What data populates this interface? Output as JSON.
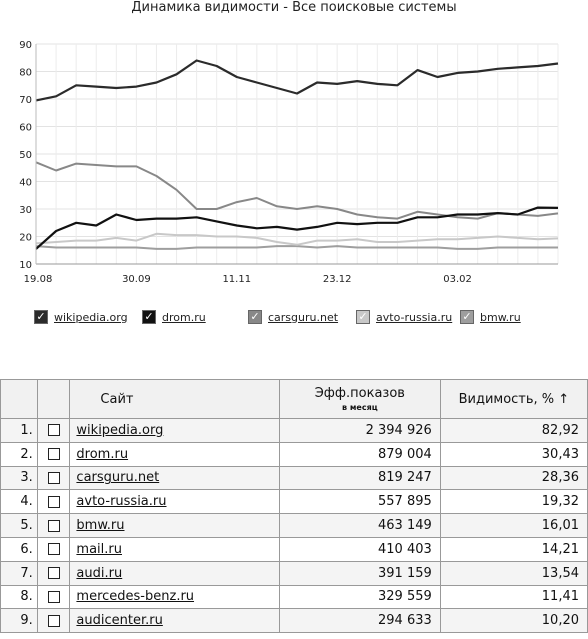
{
  "chart_data": {
    "type": "line",
    "title": "Динамика видимости - Все поисковые системы",
    "ylim": [
      10,
      90
    ],
    "yticks": [
      "10",
      "20",
      "30",
      "40",
      "50",
      "60",
      "70",
      "80",
      "90"
    ],
    "xtick_labels": [
      "19.08",
      "30.09",
      "11.11",
      "23.12",
      "03.02"
    ],
    "grid": true,
    "legend_position": "bottom",
    "series": [
      {
        "name": "wikipedia.org",
        "color": "#2b2b2b",
        "values": [
          69.5,
          71,
          75,
          74.5,
          74,
          74.5,
          76,
          79,
          84,
          82,
          78,
          76,
          74,
          72,
          76,
          75.5,
          76.5,
          75.5,
          75,
          80.5,
          78,
          79.5,
          80,
          81,
          81.5,
          82,
          82.9
        ]
      },
      {
        "name": "drom.ru",
        "color": "#111111",
        "values": [
          15.5,
          22,
          25,
          24,
          28,
          26,
          26.5,
          26.5,
          27,
          25.5,
          24,
          23,
          23.5,
          22.5,
          23.5,
          25,
          24.5,
          25,
          25,
          27,
          27,
          28,
          28,
          28.5,
          28,
          30.5,
          30.4
        ]
      },
      {
        "name": "carsguru.net",
        "color": "#888888",
        "values": [
          47,
          44,
          46.5,
          46,
          45.5,
          45.5,
          42,
          37,
          30,
          30,
          32.5,
          34,
          31,
          30,
          31,
          30,
          28,
          27,
          26.5,
          29,
          28,
          27,
          26.5,
          28.5,
          28,
          27.5,
          28.4
        ]
      },
      {
        "name": "avto-russia.ru",
        "color": "#c8c8c8",
        "values": [
          17.5,
          18,
          18.5,
          18.5,
          19.5,
          18.5,
          21,
          20.5,
          20.5,
          20,
          20,
          19.5,
          18,
          17,
          18.5,
          18.5,
          19,
          18,
          18,
          18.5,
          19,
          19,
          19.5,
          20,
          19.5,
          19,
          19.3
        ]
      },
      {
        "name": "bmw.ru",
        "color": "#9e9e9e",
        "values": [
          16.5,
          16,
          16,
          16,
          16,
          16,
          15.5,
          15.5,
          16,
          16,
          16,
          16,
          16.5,
          16.5,
          16,
          16.5,
          16,
          16,
          16,
          16,
          16,
          15.5,
          15.5,
          16,
          16,
          16,
          16
        ]
      }
    ]
  },
  "table": {
    "header": {
      "site": "Сайт",
      "shows": "Эфф.показов",
      "shows_sub": "в месяц",
      "visibility": "Видимость, % ↑"
    },
    "rows": [
      {
        "num": "1.",
        "site": "wikipedia.org",
        "shows": "2 394 926",
        "visibility": "82,92"
      },
      {
        "num": "2.",
        "site": "drom.ru",
        "shows": "879 004",
        "visibility": "30,43"
      },
      {
        "num": "3.",
        "site": "carsguru.net",
        "shows": "819 247",
        "visibility": "28,36"
      },
      {
        "num": "4.",
        "site": "avto-russia.ru",
        "shows": "557 895",
        "visibility": "19,32"
      },
      {
        "num": "5.",
        "site": "bmw.ru",
        "shows": "463 149",
        "visibility": "16,01"
      },
      {
        "num": "6.",
        "site": "mail.ru",
        "shows": "410 403",
        "visibility": "14,21"
      },
      {
        "num": "7.",
        "site": "audi.ru",
        "shows": "391 159",
        "visibility": "13,54"
      },
      {
        "num": "8.",
        "site": "mercedes-benz.ru",
        "shows": "329 559",
        "visibility": "11,41"
      },
      {
        "num": "9.",
        "site": "audicenter.ru",
        "shows": "294 633",
        "visibility": "10,20"
      }
    ]
  }
}
